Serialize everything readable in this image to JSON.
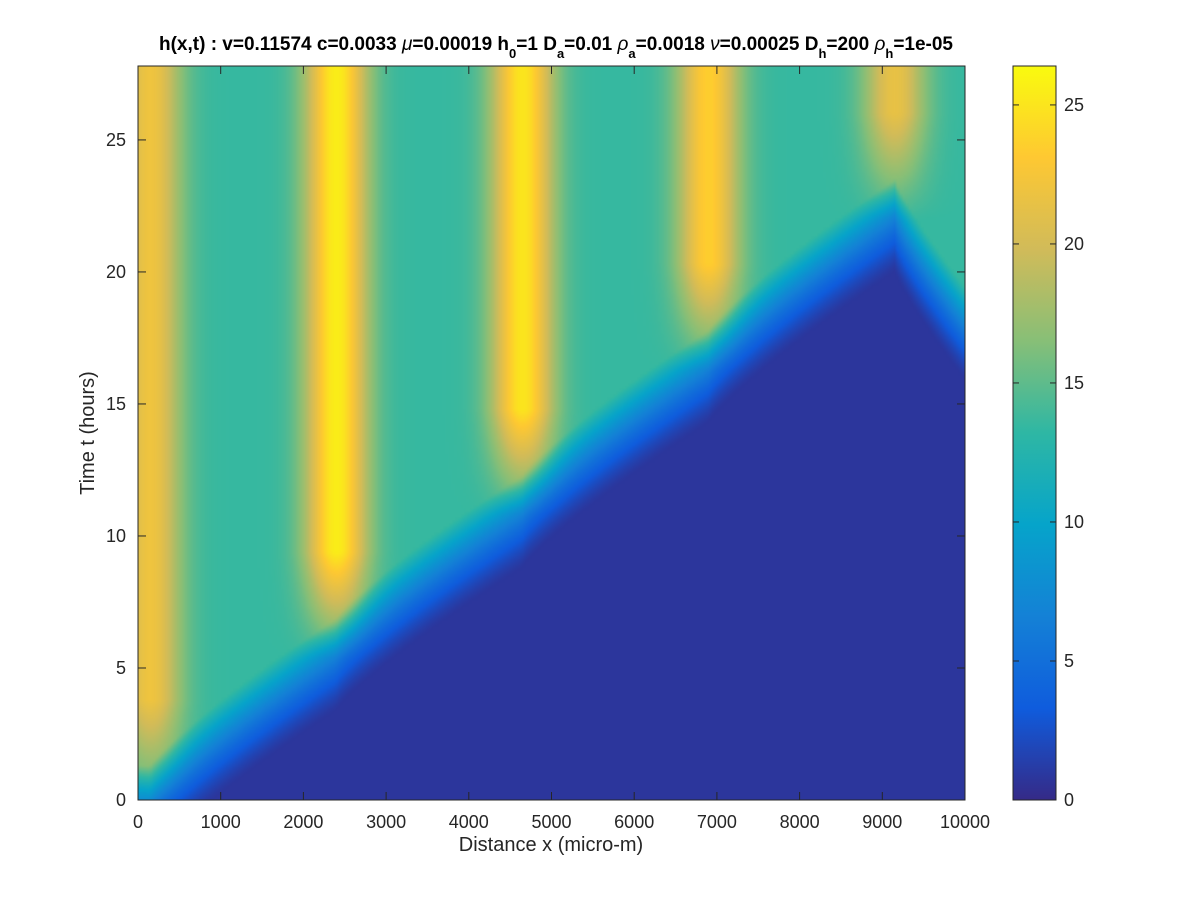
{
  "chart_data": {
    "type": "heatmap",
    "title": {
      "segments": [
        {
          "t": "h(x,t) :  v=0.11574 c=0.0033 "
        },
        {
          "t": "μ",
          "style": "italic"
        },
        {
          "t": "=0.00019 h"
        },
        {
          "t": "0",
          "style": "sub"
        },
        {
          "t": "=1 D"
        },
        {
          "t": "a",
          "style": "sub"
        },
        {
          "t": "=0.01 "
        },
        {
          "t": "ρ",
          "style": "italic"
        },
        {
          "t": "a",
          "style": "sub"
        },
        {
          "t": "=0.0018 "
        },
        {
          "t": "ν",
          "style": "italic"
        },
        {
          "t": "=0.00025 D"
        },
        {
          "t": "h",
          "style": "sub"
        },
        {
          "t": "=200 "
        },
        {
          "t": "ρ",
          "style": "italic"
        },
        {
          "t": "h",
          "style": "sub"
        },
        {
          "t": "=1e-05"
        }
      ]
    },
    "xlabel": "Distance x (micro-m)",
    "ylabel": "Time t (hours)",
    "xlim": [
      0,
      10000
    ],
    "ylim": [
      0,
      27.8
    ],
    "xticks": [
      0,
      1000,
      2000,
      3000,
      4000,
      5000,
      6000,
      7000,
      8000,
      9000,
      10000
    ],
    "xtick_labels": [
      "0",
      "1000",
      "2000",
      "3000",
      "4000",
      "5000",
      "6000",
      "7000",
      "8000",
      "9000",
      "10000"
    ],
    "yticks": [
      0,
      5,
      10,
      15,
      20,
      25
    ],
    "ytick_labels": [
      "0",
      "5",
      "10",
      "15",
      "20",
      "25"
    ],
    "colorbar": {
      "colormap": "parula",
      "clim": [
        0,
        26.4
      ],
      "ticks": [
        0,
        5,
        10,
        15,
        20,
        25
      ],
      "tick_labels": [
        "0",
        "5",
        "10",
        "15",
        "20",
        "25"
      ],
      "colors": [
        "#352a87",
        "#0f5cdd",
        "#1481d6",
        "#06a4ca",
        "#2eb7a4",
        "#87bf77",
        "#d1bb59",
        "#fec832",
        "#f9fb0e"
      ]
    },
    "field": {
      "background_value": 0.8,
      "peaks": [
        {
          "x": 150,
          "t_onset": 0.3,
          "value": 22.0
        },
        {
          "x": 2400,
          "t_onset": 5.9,
          "value": 25.5
        },
        {
          "x": 4650,
          "t_onset": 11.3,
          "value": 25.0
        },
        {
          "x": 6900,
          "t_onset": 16.8,
          "value": 23.5
        },
        {
          "x": 9150,
          "t_onset": 22.5,
          "value": 21.5
        }
      ],
      "inter_peak_value": 13.5,
      "front_t_at_x_max": 18.4
    }
  }
}
